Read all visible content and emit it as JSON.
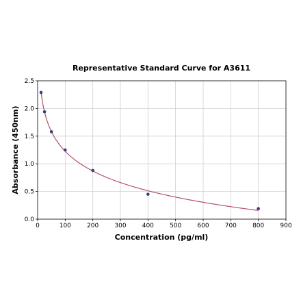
{
  "chart_data": {
    "type": "scatter",
    "title": "Representative Standard Curve for A3611",
    "xlabel": "Concentration (pg/ml)",
    "ylabel": "Absorbance (450nm)",
    "xlim": [
      0,
      900
    ],
    "ylim": [
      0,
      2.5
    ],
    "xticks": [
      0,
      100,
      200,
      300,
      400,
      500,
      600,
      700,
      800,
      900
    ],
    "yticks": [
      0.0,
      0.5,
      1.0,
      1.5,
      2.0,
      2.5
    ],
    "xtick_labels": [
      "0",
      "100",
      "200",
      "300",
      "400",
      "500",
      "600",
      "700",
      "800",
      "900"
    ],
    "ytick_labels": [
      "0.0",
      "0.5",
      "1.0",
      "1.5",
      "2.0",
      "2.5"
    ],
    "grid": true,
    "points": {
      "x": [
        12.5,
        25,
        50,
        100,
        200,
        400,
        800
      ],
      "y": [
        2.29,
        1.94,
        1.58,
        1.25,
        0.88,
        0.45,
        0.19
      ]
    },
    "fit_curve": true,
    "colors": {
      "points": "#3b3f7a",
      "curve": "#b4506a"
    }
  }
}
